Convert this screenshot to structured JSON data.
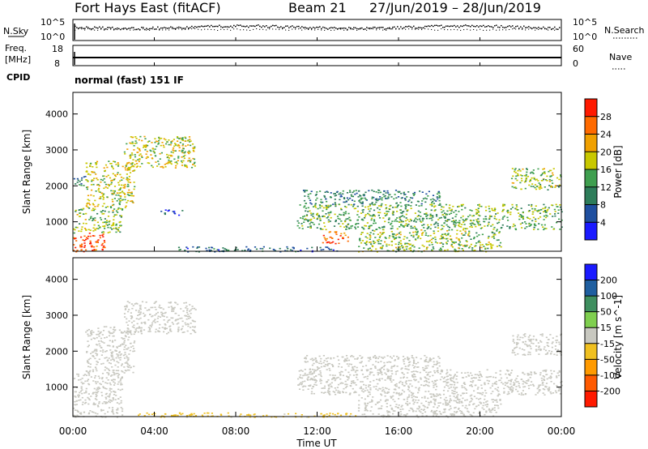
{
  "header": {
    "station": "Fort Hays East (fitACF)",
    "beam": "Beam 21",
    "date_range": "27/Jun/2019 – 28/Jun/2019"
  },
  "noise_panel": {
    "left_label": "N.Sky",
    "right_label": "N.Search",
    "axis_ticks": [
      "10^5",
      "10^0"
    ]
  },
  "freq_panel": {
    "left_label_1": "Freq.",
    "left_label_2": "[MHz]",
    "left_ticks": [
      "18",
      "8"
    ],
    "right_label": "Nave",
    "right_ticks": [
      "60",
      "0"
    ]
  },
  "cpid": {
    "label": "CPID",
    "value": "normal (fast) 151 IF"
  },
  "colors": {
    "power_scale": [
      "#1a1aff",
      "#1f4f9f",
      "#2e7d5a",
      "#3f9f4f",
      "#c8c800",
      "#f0a000",
      "#ff6a00",
      "#ff1a00"
    ],
    "velocity_scale": [
      "#ff1a00",
      "#ff5a00",
      "#ff9a00",
      "#f0c020",
      "#c8c8c0",
      "#7fcf4f",
      "#3f8f5f",
      "#1f5fa0",
      "#1a1aff"
    ],
    "frame": "#000000"
  },
  "chart_data": [
    {
      "type": "heatmap",
      "panel": "power",
      "xlabel": "Time UT",
      "ylabel": "Slant Range [km]",
      "x_ticks": [
        "00:00",
        "04:00",
        "08:00",
        "12:00",
        "16:00",
        "20:00",
        "00:00"
      ],
      "xlim_hours": [
        0,
        24
      ],
      "y_ticks": [
        1000,
        2000,
        3000,
        4000
      ],
      "ylim_km": [
        180,
        4600
      ],
      "colorbar": {
        "label": "Power [dB]",
        "ticks": [
          "28",
          "24",
          "20",
          "16",
          "12",
          "8",
          "4"
        ],
        "range": [
          0,
          32
        ]
      },
      "regions": [
        {
          "t0": 0.0,
          "t1": 1.6,
          "r0": 180,
          "r1": 700,
          "value": 28
        },
        {
          "t0": 0.0,
          "t1": 2.4,
          "r0": 700,
          "r1": 1400,
          "value": 16
        },
        {
          "t0": 0.0,
          "t1": 0.6,
          "r0": 2000,
          "r1": 2300,
          "value": 10
        },
        {
          "t0": 0.6,
          "t1": 3.0,
          "r0": 1400,
          "r1": 2700,
          "value": 18
        },
        {
          "t0": 2.5,
          "t1": 6.0,
          "r0": 2500,
          "r1": 3400,
          "value": 18
        },
        {
          "t0": 4.3,
          "t1": 5.5,
          "r0": 1200,
          "r1": 1350,
          "value": 6
        },
        {
          "t0": 11.0,
          "t1": 24.0,
          "r0": 800,
          "r1": 1500,
          "value": 14
        },
        {
          "t0": 11.3,
          "t1": 18.0,
          "r0": 1500,
          "r1": 1900,
          "value": 10
        },
        {
          "t0": 12.2,
          "t1": 13.5,
          "r0": 400,
          "r1": 750,
          "value": 26
        },
        {
          "t0": 14.0,
          "t1": 21.0,
          "r0": 180,
          "r1": 800,
          "value": 16
        },
        {
          "t0": 21.5,
          "t1": 24.0,
          "r0": 1900,
          "r1": 2500,
          "value": 16
        },
        {
          "t0": 5.0,
          "t1": 13.0,
          "r0": 180,
          "r1": 320,
          "value": 8
        }
      ]
    },
    {
      "type": "heatmap",
      "panel": "velocity",
      "xlabel": "Time UT",
      "ylabel": "Slant Range [km]",
      "x_ticks": [
        "00:00",
        "04:00",
        "08:00",
        "12:00",
        "16:00",
        "20:00",
        "00:00"
      ],
      "xlim_hours": [
        0,
        24
      ],
      "y_ticks": [
        1000,
        2000,
        3000,
        4000
      ],
      "ylim_km": [
        180,
        4600
      ],
      "colorbar": {
        "label": "Velocity [m s^-1]",
        "ticks": [
          "200",
          "100",
          "50",
          "15",
          "-15",
          "-50",
          "-100",
          "-200"
        ],
        "range": [
          -250,
          250
        ]
      },
      "regions": [
        {
          "t0": 0.0,
          "t1": 2.4,
          "r0": 180,
          "r1": 1400,
          "value": 0
        },
        {
          "t0": 0.6,
          "t1": 3.0,
          "r0": 1400,
          "r1": 2700,
          "value": 0
        },
        {
          "t0": 2.5,
          "t1": 6.0,
          "r0": 2500,
          "r1": 3400,
          "value": 0
        },
        {
          "t0": 11.0,
          "t1": 24.0,
          "r0": 800,
          "r1": 1500,
          "value": 0
        },
        {
          "t0": 11.3,
          "t1": 18.0,
          "r0": 1500,
          "r1": 1900,
          "value": 0
        },
        {
          "t0": 14.0,
          "t1": 21.0,
          "r0": 180,
          "r1": 800,
          "value": 0
        },
        {
          "t0": 21.5,
          "t1": 24.0,
          "r0": 1900,
          "r1": 2500,
          "value": 0
        },
        {
          "t0": 3.0,
          "t1": 14.0,
          "r0": 180,
          "r1": 300,
          "value": -40
        }
      ]
    }
  ]
}
